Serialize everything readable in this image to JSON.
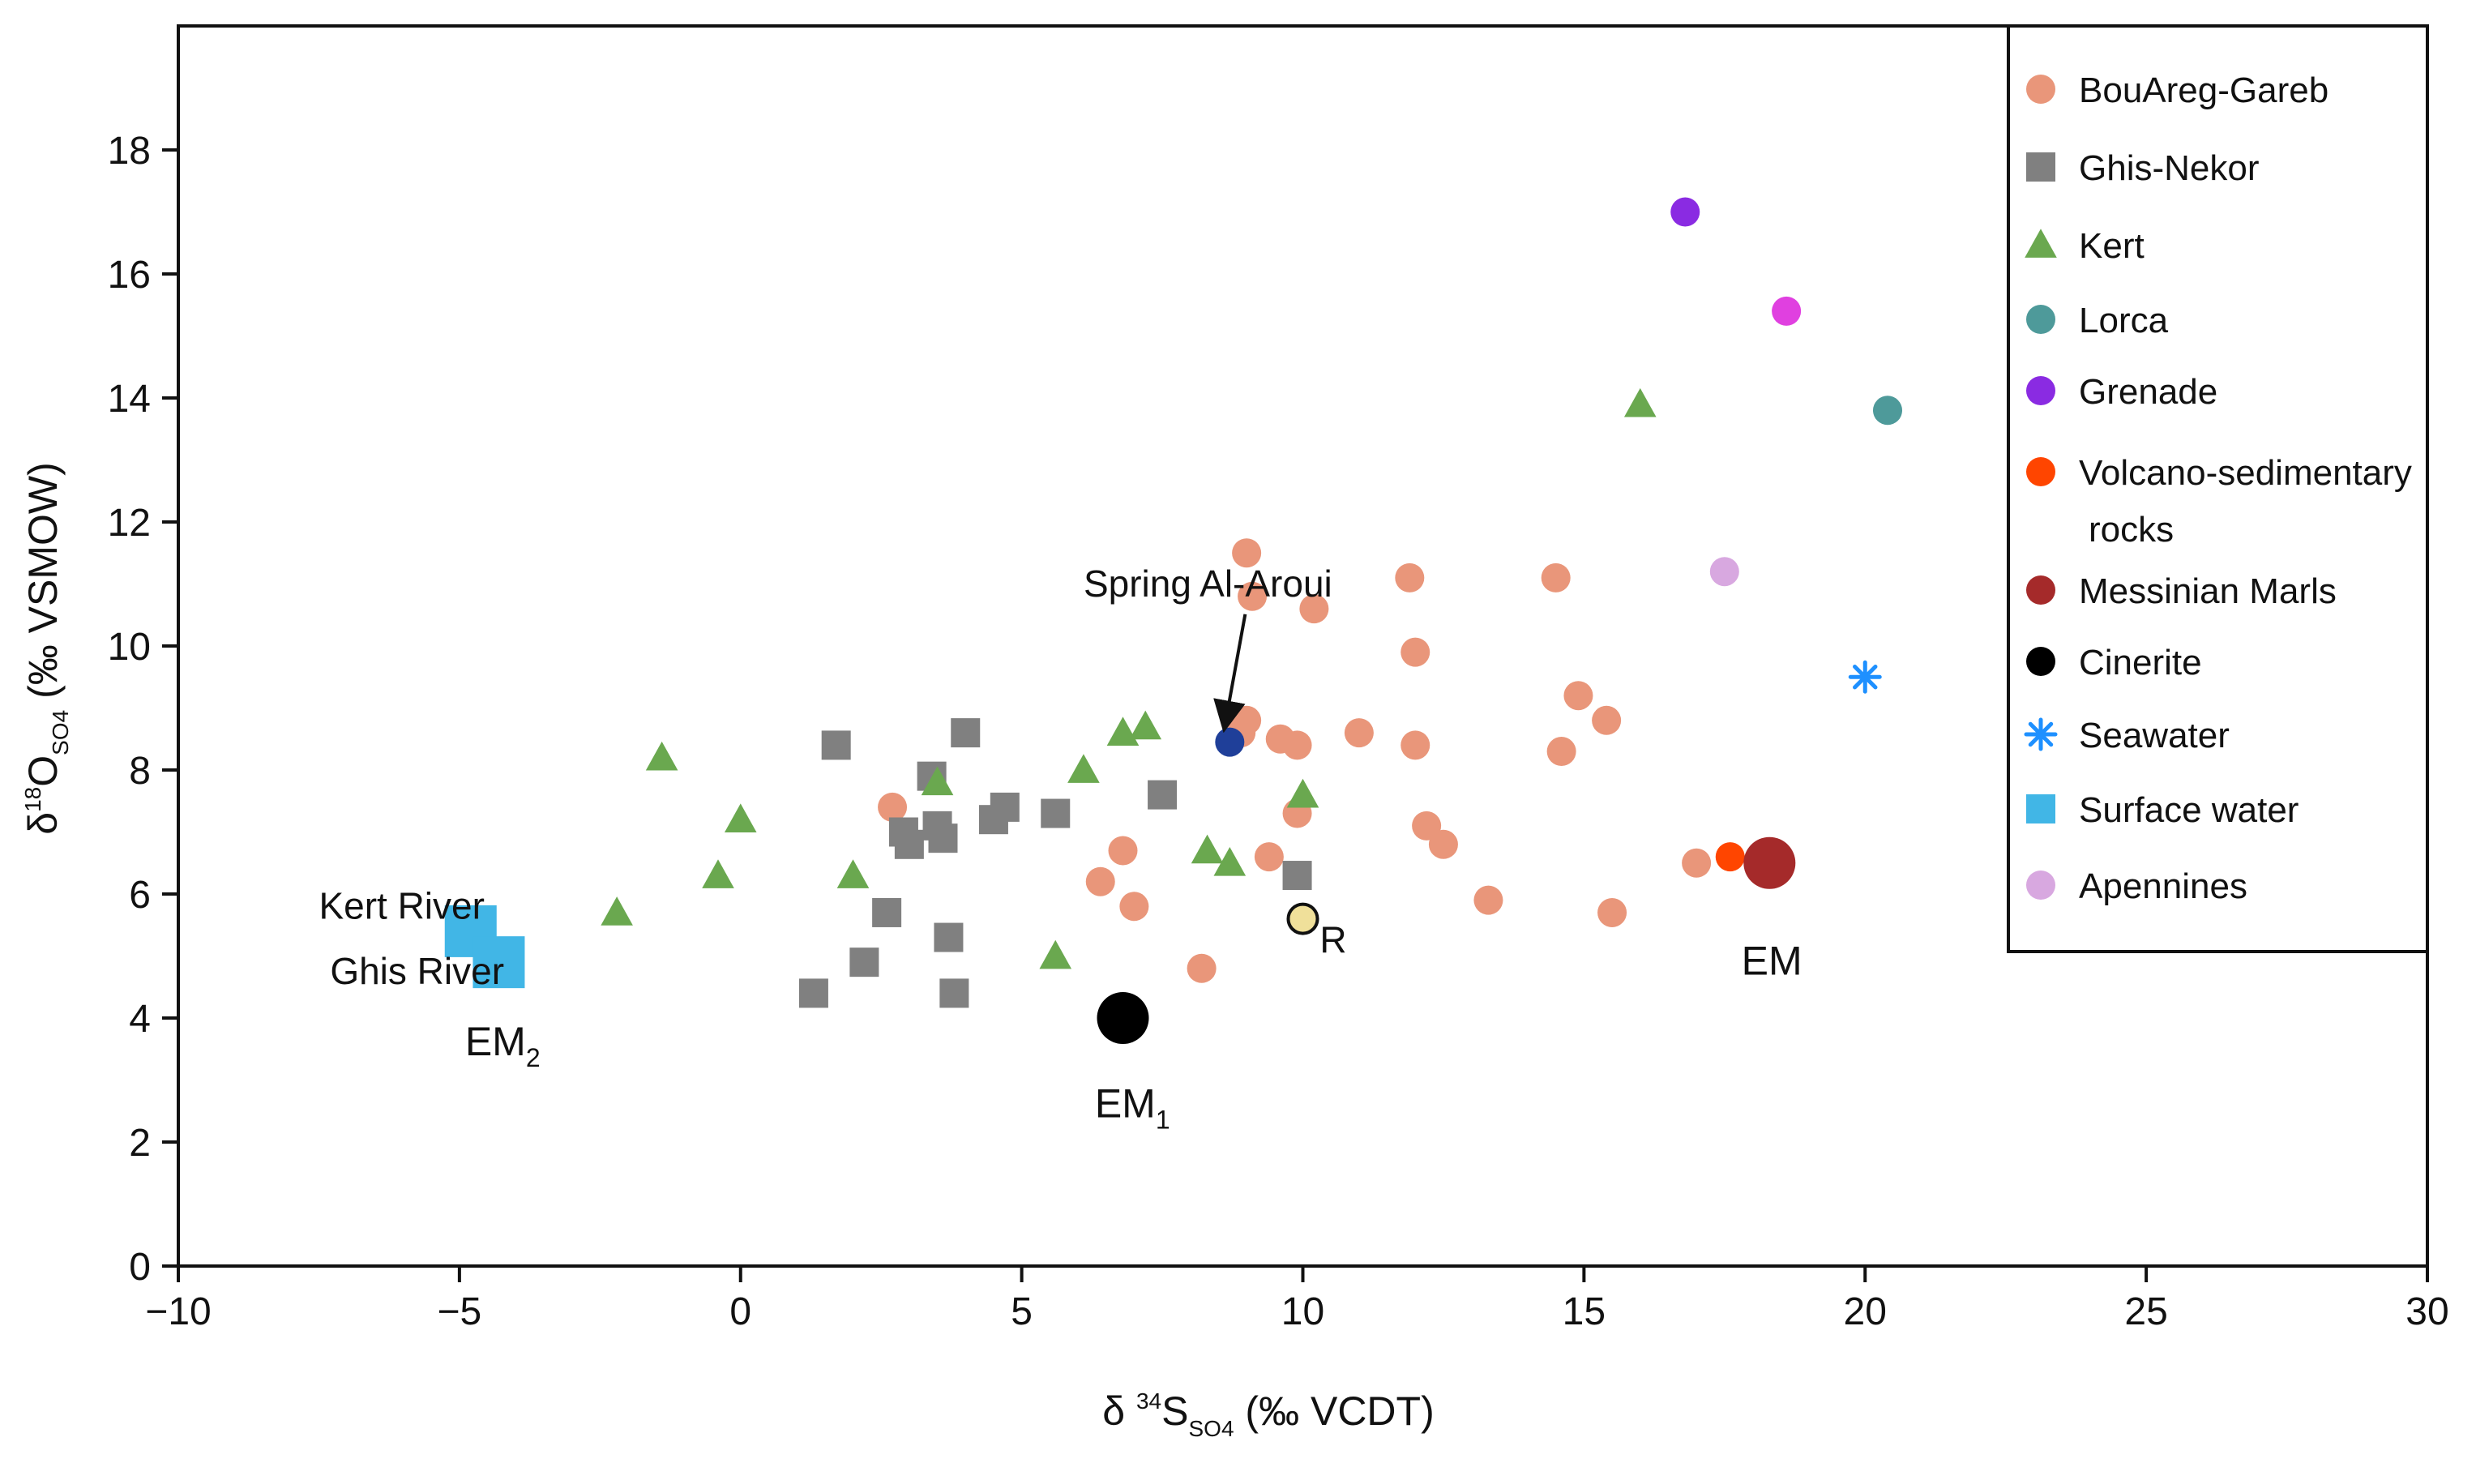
{
  "chart_data": {
    "type": "scatter",
    "title": "",
    "xlabel": {
      "main": "δ ",
      "sup": "34",
      "letter": "S",
      "sub": "SO4",
      "tail": " (‰ VCDT)"
    },
    "ylabel": {
      "main": "δ",
      "sup": "18",
      "letter": "O",
      "sub": "SO4",
      "tail": " (‰ VSMOW)"
    },
    "xlim": [
      -10,
      30
    ],
    "ylim": [
      0,
      20
    ],
    "xticks": [
      -10,
      -5,
      0,
      5,
      10,
      15,
      20,
      25,
      30
    ],
    "yticks": [
      0,
      2,
      4,
      6,
      8,
      10,
      12,
      14,
      16,
      18
    ],
    "xtick_labels": [
      "−10",
      "−5",
      "0",
      "5",
      "10",
      "15",
      "20",
      "25",
      "30"
    ],
    "ytick_labels": [
      "0",
      "2",
      "4",
      "6",
      "8",
      "10",
      "12",
      "14",
      "16",
      "18"
    ],
    "grid": false,
    "legend_position": "top-right",
    "series": [
      {
        "name": "BouAreg-Gareb",
        "marker": "circle",
        "color": "#E9967A",
        "size": "medium",
        "points": [
          [
            2.7,
            7.4
          ],
          [
            6.4,
            6.2
          ],
          [
            6.8,
            6.7
          ],
          [
            7,
            5.8
          ],
          [
            8.2,
            4.8
          ],
          [
            8.9,
            8.6
          ],
          [
            9,
            8.8
          ],
          [
            9,
            11.5
          ],
          [
            9.1,
            10.8
          ],
          [
            9.4,
            6.6
          ],
          [
            9.6,
            8.5
          ],
          [
            9.9,
            8.4
          ],
          [
            9.9,
            7.3
          ],
          [
            10.2,
            10.6
          ],
          [
            11,
            8.6
          ],
          [
            11.9,
            11.1
          ],
          [
            12,
            9.9
          ],
          [
            12,
            8.4
          ],
          [
            12.2,
            7.1
          ],
          [
            12.5,
            6.8
          ],
          [
            13.3,
            5.9
          ],
          [
            14.5,
            11.1
          ],
          [
            14.6,
            8.3
          ],
          [
            14.9,
            9.2
          ],
          [
            15.4,
            8.8
          ],
          [
            15.5,
            5.7
          ],
          [
            17,
            6.5
          ]
        ]
      },
      {
        "name": "Ghis-Nekor",
        "marker": "square",
        "color": "#808080",
        "size": "medium",
        "points": [
          [
            1.3,
            4.4
          ],
          [
            1.7,
            8.4
          ],
          [
            2.2,
            4.9
          ],
          [
            2.6,
            5.7
          ],
          [
            2.9,
            7
          ],
          [
            3,
            6.8
          ],
          [
            3.4,
            7.9
          ],
          [
            3.5,
            7.1
          ],
          [
            3.6,
            6.9
          ],
          [
            3.7,
            5.3
          ],
          [
            3.8,
            4.4
          ],
          [
            4,
            8.6
          ],
          [
            4.5,
            7.2
          ],
          [
            4.7,
            7.4
          ],
          [
            5.6,
            7.3
          ],
          [
            7.5,
            7.6
          ],
          [
            9.9,
            6.3
          ]
        ]
      },
      {
        "name": "Kert",
        "marker": "triangle",
        "color": "#6AA84F",
        "size": "medium",
        "points": [
          [
            -2.2,
            5.7
          ],
          [
            -1.4,
            8.2
          ],
          [
            -0.4,
            6.3
          ],
          [
            0,
            7.2
          ],
          [
            2,
            6.3
          ],
          [
            3.5,
            7.8
          ],
          [
            5.6,
            5
          ],
          [
            6.1,
            8
          ],
          [
            6.8,
            8.6
          ],
          [
            7.2,
            8.7
          ],
          [
            8.3,
            6.7
          ],
          [
            8.7,
            6.5
          ],
          [
            10,
            7.6
          ],
          [
            16,
            13.9
          ]
        ]
      },
      {
        "name": "Lorca",
        "marker": "circle",
        "color": "#4E9A9A",
        "size": "medium",
        "points": [
          [
            20.4,
            13.8
          ]
        ]
      },
      {
        "name": "Grenade",
        "marker": "circle",
        "color": "#8A2BE2",
        "size": "medium",
        "points": [
          [
            16.8,
            17
          ]
        ]
      },
      {
        "name": "Volcano-sedimentary rocks",
        "marker": "circle",
        "color": "#FF4500",
        "size": "medium",
        "points": [
          [
            17.6,
            6.6
          ]
        ]
      },
      {
        "name": "Messinian Marls",
        "marker": "circle",
        "color": "#A52A2A",
        "size": "large",
        "points": [
          [
            18.3,
            6.5
          ]
        ]
      },
      {
        "name": "Cinerite",
        "marker": "circle",
        "color": "#000000",
        "size": "large",
        "points": [
          [
            6.8,
            4
          ]
        ]
      },
      {
        "name": "Seawater",
        "marker": "asterisk",
        "color": "#1E90FF",
        "size": "medium",
        "points": [
          [
            20,
            9.5
          ]
        ]
      },
      {
        "name": "Surface water",
        "marker": "square",
        "color": "#41B6E6",
        "size": "large",
        "points": [
          [
            -4.8,
            5.4
          ],
          [
            -4.3,
            4.9
          ]
        ]
      },
      {
        "name": "Apennines",
        "marker": "circle",
        "color": "#D8A8E0",
        "size": "medium",
        "points": [
          [
            17.5,
            11.2
          ]
        ]
      }
    ],
    "extra_points": [
      {
        "name": "Magenta point",
        "marker": "circle",
        "color": "#E040E0",
        "size": "medium",
        "x": 18.6,
        "y": 15.4
      },
      {
        "name": "Spring Al-Aroui",
        "marker": "circle",
        "color": "#1F3F99",
        "size": "medium",
        "x": 8.7,
        "y": 8.45
      },
      {
        "name": "R",
        "marker": "circle",
        "color": "#F0E09A",
        "size": "medium",
        "x": 10,
        "y": 5.6
      }
    ],
    "legend_items": [
      {
        "label": "BouAreg-Gareb",
        "marker": "circle",
        "color": "#E9967A"
      },
      {
        "label": "Ghis-Nekor",
        "marker": "square",
        "color": "#808080"
      },
      {
        "label": "Kert",
        "marker": "triangle",
        "color": "#6AA84F"
      },
      {
        "label": "Lorca",
        "marker": "circle",
        "color": "#4E9A9A"
      },
      {
        "label": "Grenade",
        "marker": "circle",
        "color": "#8A2BE2"
      },
      {
        "label": "Volcano-sedimentary",
        "label2": "rocks",
        "marker": "circle",
        "color": "#FF4500"
      },
      {
        "label": "Messinian Marls",
        "marker": "circle",
        "color": "#A52A2A"
      },
      {
        "label": "Cinerite",
        "marker": "circle",
        "color": "#000000"
      },
      {
        "label": "Seawater",
        "marker": "asterisk",
        "color": "#1E90FF"
      },
      {
        "label": "Surface water",
        "marker": "square",
        "color": "#41B6E6"
      },
      {
        "label": "Apennines",
        "marker": "circle",
        "color": "#D8A8E0"
      }
    ],
    "annotations": [
      {
        "id": "spring",
        "text": "Spring Al-Aroui",
        "x": 6.1,
        "y": 10.8,
        "arrow_to": [
          8.6,
          8.65
        ]
      },
      {
        "id": "kert-river",
        "text": "Kert River",
        "x": -7.5,
        "y": 5.6
      },
      {
        "id": "ghis-river",
        "text": "Ghis River",
        "x": -7.3,
        "y": 4.55
      },
      {
        "id": "em2",
        "text": "EM",
        "sub": "2",
        "x": -4.9,
        "y": 3.4
      },
      {
        "id": "em1",
        "text": "EM",
        "sub": "1",
        "x": 6.3,
        "y": 2.4
      },
      {
        "id": "em",
        "text": "EM",
        "x": 17.8,
        "y": 4.7
      },
      {
        "id": "r",
        "text": "R",
        "x": 10.3,
        "y": 5.05
      }
    ]
  }
}
